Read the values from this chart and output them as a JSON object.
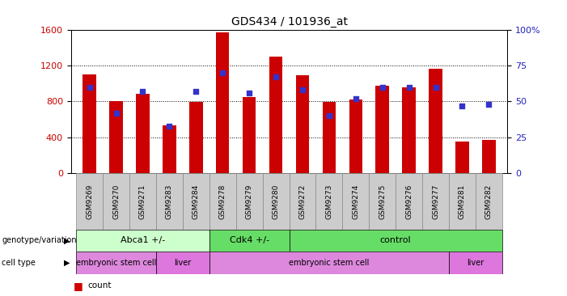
{
  "title": "GDS434 / 101936_at",
  "samples": [
    "GSM9269",
    "GSM9270",
    "GSM9271",
    "GSM9283",
    "GSM9284",
    "GSM9278",
    "GSM9279",
    "GSM9280",
    "GSM9272",
    "GSM9273",
    "GSM9274",
    "GSM9275",
    "GSM9276",
    "GSM9277",
    "GSM9281",
    "GSM9282"
  ],
  "counts": [
    1100,
    800,
    880,
    530,
    790,
    1570,
    850,
    1300,
    1090,
    790,
    820,
    970,
    960,
    1160,
    350,
    370
  ],
  "percentiles": [
    60,
    42,
    57,
    33,
    57,
    70,
    56,
    67,
    58,
    40,
    52,
    60,
    60,
    60,
    47,
    48
  ],
  "ylim_left": [
    0,
    1600
  ],
  "ylim_right": [
    0,
    100
  ],
  "yticks_left": [
    0,
    400,
    800,
    1200,
    1600
  ],
  "yticks_right": [
    0,
    25,
    50,
    75,
    100
  ],
  "bar_color": "#cc0000",
  "dot_color": "#3333cc",
  "left_axis_color": "#cc0000",
  "right_axis_color": "#2222bb",
  "background_color": "#ffffff",
  "geno_groups": [
    {
      "label": "Abca1 +/-",
      "start": 0,
      "end": 4,
      "color": "#ccffcc"
    },
    {
      "label": "Cdk4 +/-",
      "start": 5,
      "end": 7,
      "color": "#66dd66"
    },
    {
      "label": "control",
      "start": 8,
      "end": 15,
      "color": "#66dd66"
    }
  ],
  "cell_groups": [
    {
      "label": "embryonic stem cell",
      "start": 0,
      "end": 2,
      "color": "#dd88dd"
    },
    {
      "label": "liver",
      "start": 3,
      "end": 4,
      "color": "#dd77dd"
    },
    {
      "label": "embryonic stem cell",
      "start": 5,
      "end": 13,
      "color": "#dd88dd"
    },
    {
      "label": "liver",
      "start": 14,
      "end": 15,
      "color": "#dd77dd"
    }
  ],
  "grid_yticks": [
    400,
    800,
    1200
  ],
  "bar_width": 0.5
}
